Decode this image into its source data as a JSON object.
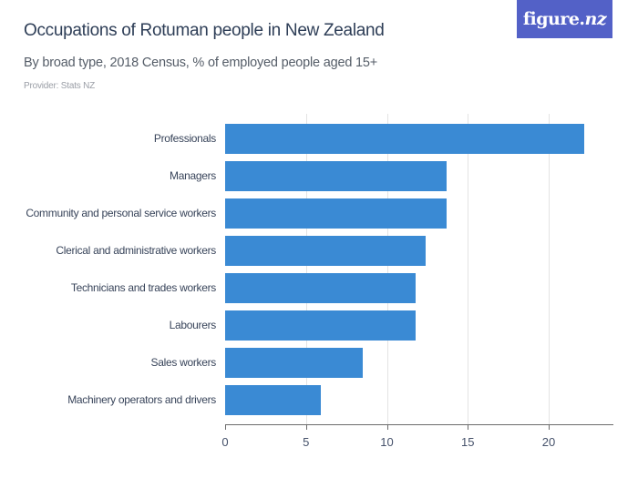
{
  "header": {
    "title": "Occupations of Rotuman people in New Zealand",
    "subtitle": "By broad type, 2018 Census, % of employed people aged 15+",
    "provider": "Provider: Stats NZ"
  },
  "logo": {
    "text_main": "figure.",
    "text_nz": "nz"
  },
  "colors": {
    "bar": "#3a8ad4",
    "logo_bg": "#5361c7",
    "title": "#2e3e57"
  },
  "chart_data": {
    "type": "bar",
    "orientation": "horizontal",
    "title": "Occupations of Rotuman people in New Zealand",
    "subtitle": "By broad type, 2018 Census, % of employed people aged 15+",
    "xlabel": "",
    "ylabel": "",
    "categories": [
      "Professionals",
      "Managers",
      "Community and personal service workers",
      "Clerical and administrative workers",
      "Technicians and trades workers",
      "Labourers",
      "Sales workers",
      "Machinery operators and drivers"
    ],
    "values": [
      22.2,
      13.7,
      13.7,
      12.4,
      11.8,
      11.8,
      8.5,
      5.9
    ],
    "xlim": [
      0,
      24
    ],
    "xticks": [
      "0",
      "5",
      "10",
      "15",
      "20"
    ],
    "grid": true,
    "legend": null
  }
}
